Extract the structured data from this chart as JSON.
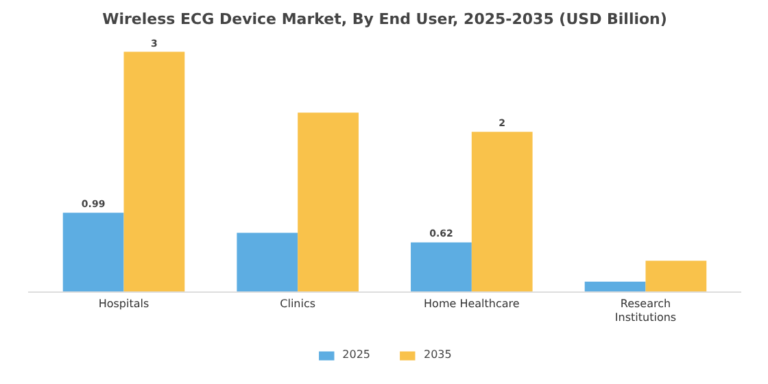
{
  "chart_data": {
    "type": "bar",
    "title": "Wireless ECG Device Market, By End User, 2025-2035 (USD Billion)",
    "categories": [
      "Hospitals",
      "Clinics",
      "Home Healthcare",
      "Research\nInstitutions"
    ],
    "series": [
      {
        "name": "2025",
        "color": "#5dade2",
        "values": [
          0.99,
          0.74,
          0.62,
          0.13
        ],
        "value_labels": [
          "0.99",
          null,
          "0.62",
          null
        ]
      },
      {
        "name": "2035",
        "color": "#f9c24b",
        "values": [
          3,
          2.24,
          2,
          0.39
        ],
        "value_labels": [
          "3",
          null,
          "2",
          null
        ]
      }
    ],
    "legend": "bottom"
  }
}
